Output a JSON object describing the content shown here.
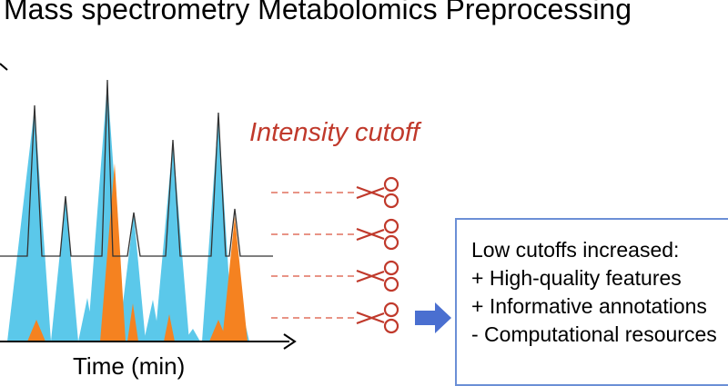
{
  "title": "Mass spectrometry Metabolomics Preprocessing",
  "cutoff_label": "Intensity cutoff",
  "x_axis_label": "Time (min)",
  "result_box": {
    "lines": [
      "Low cutoffs increased:",
      "+ High-quality features",
      "+ Informative annotations",
      "- Computational resources"
    ]
  },
  "colors": {
    "blue_peaks": "#5bc8ea",
    "orange_peaks": "#f58220",
    "cutoff_red": "#c0392b",
    "arrow_blue": "#4a6fd0",
    "box_border": "#6b8fd6",
    "axis": "#000000"
  },
  "icons": {
    "scissors": "scissors-icon",
    "arrow": "arrow-right-icon"
  }
}
